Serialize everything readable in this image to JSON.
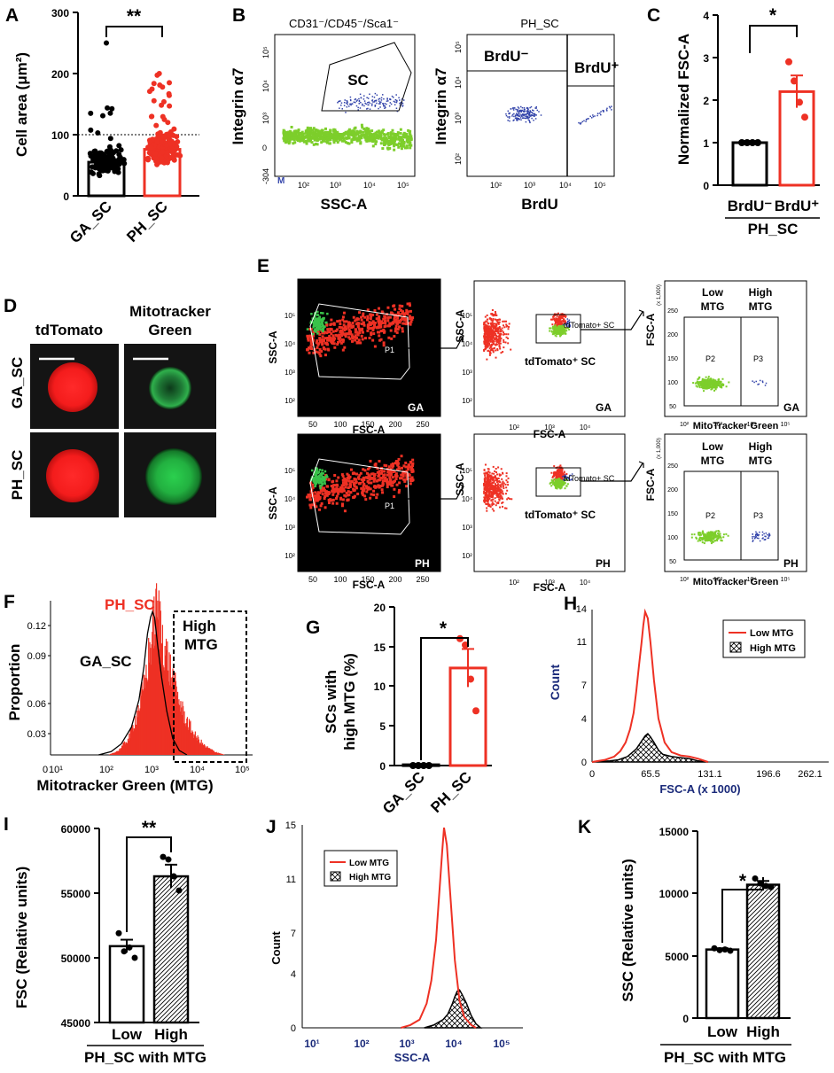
{
  "colors": {
    "red": "#ee3124",
    "black": "#000000",
    "green": "#7dce2b",
    "blue": "#3344aa",
    "navy": "#1a2a7a",
    "micro_bg": "#141414"
  },
  "figure": {
    "A": {
      "label": "A",
      "ylabel": "Cell area (μm²)",
      "ticks": [
        "0",
        "100",
        "200",
        "300"
      ],
      "categories": [
        "GA_SC",
        "PH_SC"
      ],
      "sig": "**"
    },
    "B": {
      "label": "B",
      "title1": "CD31⁻/CD45⁻/Sca1⁻",
      "title2": "PH_SC",
      "ylabel": "Integrin α7",
      "xlabel1": "SSC-A",
      "xlabel2": "BrdU",
      "gate_sc": "SC",
      "gate_neg": "BrdU⁻",
      "gate_pos": "BrdU⁺",
      "neg_tick": "-304",
      "m_marker": "M",
      "xticks": [
        "10²",
        "10³",
        "10⁴",
        "10⁵"
      ],
      "yticks": [
        "10²",
        "10³",
        "10⁴",
        "10⁵"
      ],
      "yzero": "0"
    },
    "C": {
      "label": "C",
      "ylabel": "Normalized FSC-A",
      "ticks": [
        "0",
        "1",
        "2",
        "3",
        "4"
      ],
      "categories": [
        "BrdU⁻",
        "BrdU⁺"
      ],
      "group": "PH_SC",
      "sig": "*"
    },
    "D": {
      "label": "D",
      "col1": "tdTomato",
      "col2a": "Mitotracker",
      "col2b": "Green",
      "row1": "GA_SC",
      "row2": "PH_SC"
    },
    "E": {
      "label": "E",
      "ssc": "SSC-A",
      "fsc": "FSC-A",
      "fsc_x1000": "(x 1,000)",
      "p1": "P1",
      "p2": "P2",
      "p3": "P3",
      "gate_small": "tdTomato+ SC",
      "gate_big": "tdTomato⁺ SC",
      "low1": "Low",
      "low2": "MTG",
      "high1": "High",
      "high2": "MTG",
      "mtg": "MitoTracker Green",
      "ga": "GA",
      "ph": "PH",
      "lin_ticks": [
        "50",
        "100",
        "150",
        "200",
        "250"
      ],
      "log_y": [
        "10²",
        "10³",
        "10⁴",
        "10⁵"
      ],
      "log_x": [
        "10²",
        "10³",
        "10⁴"
      ],
      "mt_x": [
        "10²",
        "10³",
        "10⁴",
        "10⁵"
      ],
      "small_y": [
        "50",
        "100",
        "150",
        "200",
        "250"
      ]
    },
    "F": {
      "label": "F",
      "ylabel": "Proportion",
      "xlabel": "Mitotracker Green (MTG)",
      "ph": "PH_SC",
      "ga": "GA_SC",
      "gate1": "High",
      "gate2": "MTG",
      "yticks": [
        "0.03",
        "0.06",
        "0.09",
        "0.12"
      ],
      "x0": "0",
      "xticks": [
        "10¹",
        "10²",
        "10³",
        "10⁴",
        "10⁵"
      ]
    },
    "G": {
      "label": "G",
      "ylabel1": "SCs with",
      "ylabel2": "high MTG (%)",
      "ticks": [
        "0",
        "5",
        "10",
        "15",
        "20"
      ],
      "categories": [
        "GA_SC",
        "PH_SC"
      ],
      "sig": "*"
    },
    "H": {
      "label": "H",
      "ylabel": "Count",
      "xlabel": "FSC-A (x 1000)",
      "yticks": [
        "0",
        "4",
        "7",
        "11",
        "14"
      ],
      "xticks": [
        "0",
        "65.5",
        "131.1",
        "196.6",
        "262.1"
      ],
      "legend_low": "Low MTG",
      "legend_high": "High MTG"
    },
    "I": {
      "label": "I",
      "ylabel": "FSC (Relative units)",
      "ticks": [
        "45000",
        "50000",
        "55000",
        "60000"
      ],
      "categories": [
        "Low",
        "High"
      ],
      "group": "PH_SC with MTG",
      "sig": "**"
    },
    "J": {
      "label": "J",
      "ylabel": "Count",
      "xlabel": "SSC-A",
      "yticks": [
        "0",
        "4",
        "7",
        "11",
        "15"
      ],
      "xticks": [
        "10¹",
        "10²",
        "10³",
        "10⁴",
        "10⁵"
      ],
      "legend_low": "Low MTG",
      "legend_high": "High MTG"
    },
    "K": {
      "label": "K",
      "ylabel": "SSC (Relative units)",
      "ticks": [
        "0",
        "5000",
        "10000",
        "15000"
      ],
      "categories": [
        "Low",
        "High"
      ],
      "group": "PH_SC with MTG",
      "sig": "*"
    }
  },
  "chart_data": [
    {
      "panel": "A",
      "type": "bar",
      "categories": [
        "GA_SC",
        "PH_SC"
      ],
      "values": [
        55,
        76
      ],
      "ylim": [
        0,
        300
      ],
      "ylabel": "Cell area (μm²)",
      "reference_line": 100
    },
    {
      "panel": "C",
      "type": "bar",
      "categories": [
        "BrdU⁻",
        "BrdU⁺"
      ],
      "values": [
        1.0,
        2.2
      ],
      "errors": [
        0,
        0.38
      ],
      "points": [
        [
          1,
          1,
          1,
          1
        ],
        [
          2.9,
          2.45,
          1.95,
          1.6
        ]
      ],
      "ylim": [
        0,
        4
      ],
      "ylabel": "Normalized FSC-A"
    },
    {
      "panel": "G",
      "type": "bar",
      "categories": [
        "GA_SC",
        "PH_SC"
      ],
      "values": [
        0.1,
        12.3
      ],
      "errors": [
        0,
        2.4
      ],
      "points": [
        [
          0,
          0,
          0,
          0
        ],
        [
          16,
          15.2,
          10.9,
          6.9
        ]
      ],
      "ylim": [
        0,
        20
      ],
      "ylabel": "SCs with high MTG (%)"
    },
    {
      "panel": "I",
      "type": "bar",
      "categories": [
        "Low",
        "High"
      ],
      "values": [
        50900,
        56300
      ],
      "errors": [
        500,
        900
      ],
      "points": [
        [
          51900,
          50500,
          50800,
          50000
        ],
        [
          57800,
          57600,
          56300,
          55200
        ]
      ],
      "ylim": [
        45000,
        60000
      ],
      "ylabel": "FSC (Relative units)"
    },
    {
      "panel": "K",
      "type": "bar",
      "categories": [
        "Low",
        "High"
      ],
      "values": [
        5500,
        10700
      ],
      "errors": [
        100,
        300
      ],
      "points": [
        [
          5600,
          5450,
          5500,
          5400
        ],
        [
          11200,
          10800,
          10600,
          10500
        ]
      ],
      "ylim": [
        0,
        15000
      ],
      "ylabel": "SSC (Relative units)"
    },
    {
      "panel": "H",
      "type": "line",
      "x_unit": "FSC-A (x 1000)",
      "series": [
        {
          "name": "Low MTG",
          "x": [
            0,
            15,
            25,
            32,
            38,
            43,
            47,
            50,
            53,
            56,
            58,
            60,
            63,
            66,
            70,
            75,
            82,
            90,
            100,
            110,
            120,
            131
          ],
          "y": [
            0,
            0.2,
            0.5,
            1.0,
            1.8,
            3.0,
            4.5,
            6.5,
            8.8,
            11.0,
            12.6,
            13.8,
            13.2,
            11.0,
            7.5,
            4.0,
            1.8,
            0.9,
            0.6,
            0.5,
            0.3,
            0
          ]
        },
        {
          "name": "High MTG",
          "x": [
            0,
            20,
            30,
            40,
            50,
            55,
            60,
            63,
            66,
            70,
            75,
            80,
            90,
            100,
            110,
            120,
            131
          ],
          "y": [
            0,
            0.1,
            0.2,
            0.5,
            1.2,
            1.8,
            2.4,
            2.6,
            2.3,
            1.8,
            1.1,
            0.7,
            0.5,
            0.4,
            0.3,
            0.1,
            0
          ]
        }
      ],
      "ylim": [
        0,
        14
      ],
      "xlim": [
        0,
        262.1
      ]
    },
    {
      "panel": "J",
      "type": "line",
      "x_log10": true,
      "series": [
        {
          "name": "Low MTG",
          "x": [
            2.8,
            3.0,
            3.2,
            3.35,
            3.45,
            3.55,
            3.62,
            3.68,
            3.72,
            3.78,
            3.85,
            3.95,
            4.05,
            4.15,
            4.3,
            4.4
          ],
          "y": [
            0,
            0.2,
            0.6,
            1.8,
            3.5,
            6.5,
            10.0,
            13.0,
            14.8,
            13.5,
            10.0,
            5.0,
            2.0,
            0.8,
            0.2,
            0
          ]
        },
        {
          "name": "High MTG",
          "x": [
            3.3,
            3.5,
            3.7,
            3.8,
            3.9,
            3.95,
            4.0,
            4.05,
            4.1,
            4.2,
            4.3,
            4.4,
            4.5
          ],
          "y": [
            0,
            0.2,
            0.6,
            1.0,
            1.8,
            2.3,
            2.7,
            2.8,
            2.5,
            1.8,
            0.9,
            0.3,
            0
          ]
        }
      ],
      "ylim": [
        0,
        15
      ],
      "xlim": [
        0.7,
        5.4
      ]
    },
    {
      "panel": "F",
      "type": "area",
      "x_log10": true,
      "ylabel": "Proportion",
      "series": [
        {
          "name": "GA_SC",
          "x": [
            1.95,
            2.2,
            2.4,
            2.6,
            2.75,
            2.85,
            2.92,
            2.98,
            3.02,
            3.06,
            3.12,
            3.2,
            3.3,
            3.42,
            3.55,
            3.7
          ],
          "y": [
            0.0,
            0.003,
            0.01,
            0.025,
            0.05,
            0.08,
            0.11,
            0.125,
            0.13,
            0.125,
            0.1,
            0.07,
            0.04,
            0.015,
            0.004,
            0.0
          ]
        },
        {
          "name": "PH_SC",
          "x": [
            2.15,
            2.35,
            2.55,
            2.7,
            2.85,
            2.95,
            3.05,
            3.1,
            3.15,
            3.25,
            3.35,
            3.5,
            3.65,
            3.85,
            4.05,
            4.25,
            4.45
          ],
          "y": [
            0.0,
            0.004,
            0.015,
            0.035,
            0.06,
            0.09,
            0.12,
            0.13,
            0.125,
            0.1,
            0.08,
            0.055,
            0.035,
            0.018,
            0.008,
            0.003,
            0.0
          ]
        }
      ],
      "ylim": [
        0,
        0.14
      ],
      "xlim": [
        1,
        5
      ]
    }
  ]
}
